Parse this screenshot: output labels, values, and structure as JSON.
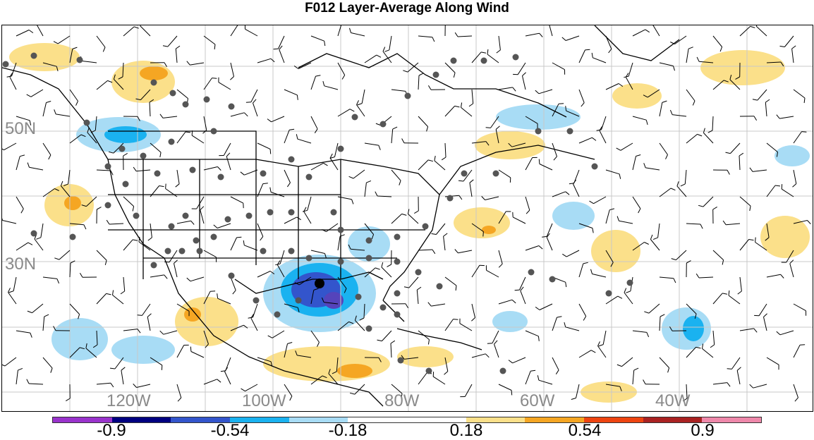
{
  "title": "F012 Layer-Average Along Wind",
  "map": {
    "lat_labels": [
      "50N",
      "30N"
    ],
    "lon_labels": [
      "120W",
      "100W",
      "80W",
      "60W",
      "40W"
    ],
    "gridline_color": "#c8c8c8",
    "label_color": "#8a8a8a",
    "land_outline_color": "#000000",
    "station_marker_color": "#555555",
    "center_marker_color": "#000000",
    "icons": [
      "station-dot",
      "wind-barb",
      "center-marker"
    ]
  },
  "colorbar": {
    "colors": [
      "#9933cc",
      "#000080",
      "#3355cc",
      "#1ab2f0",
      "#a8dcf5",
      "#ffffff",
      "#ffffff",
      "#fbe08a",
      "#f5a623",
      "#ee4411",
      "#aa2222",
      "#ee88aa"
    ],
    "tick_labels": [
      "-0.9",
      "-0.54",
      "-0.18",
      "0.18",
      "0.54",
      "0.9"
    ]
  }
}
